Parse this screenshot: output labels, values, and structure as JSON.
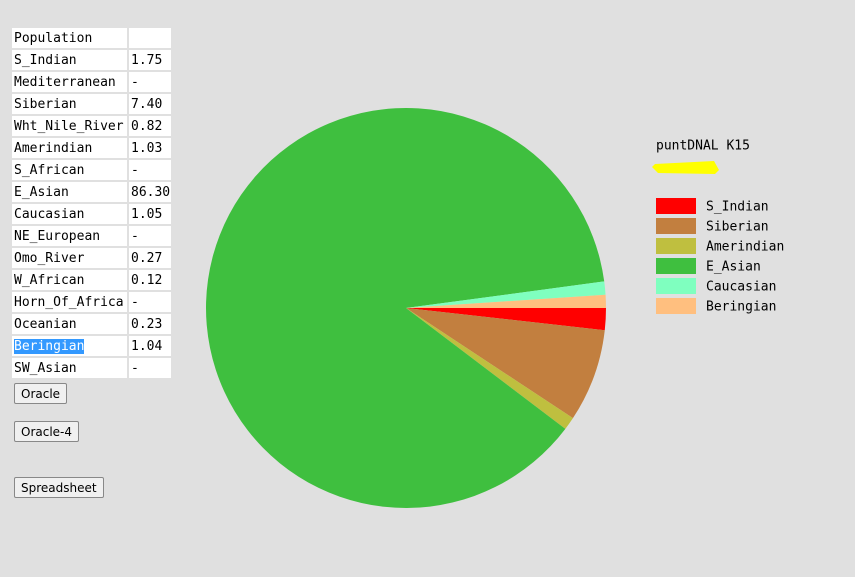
{
  "table": {
    "header": "Population",
    "rows": [
      [
        "S_Indian",
        "1.75"
      ],
      [
        "Mediterranean",
        "-"
      ],
      [
        "Siberian",
        "7.40"
      ],
      [
        "Wht_Nile_River",
        "0.82"
      ],
      [
        "Amerindian",
        "1.03"
      ],
      [
        "S_African",
        "-"
      ],
      [
        "E_Asian",
        "86.30"
      ],
      [
        "Caucasian",
        "1.05"
      ],
      [
        "NE_European",
        "-"
      ],
      [
        "Omo_River",
        "0.27"
      ],
      [
        "W_African",
        "0.12"
      ],
      [
        "Horn_Of_Africa",
        "-"
      ],
      [
        "Oceanian",
        "0.23"
      ],
      [
        "Beringian",
        "1.04"
      ],
      [
        "SW_Asian",
        "-"
      ]
    ]
  },
  "buttons": [
    "Oracle",
    "Oracle-4",
    "Spreadsheet"
  ],
  "chart_data": {
    "type": "pie",
    "title": "puntDNAL K15",
    "categories": [
      "S_Indian",
      "Siberian",
      "Amerindian",
      "E_Asian",
      "Caucasian",
      "Beringian"
    ],
    "values": [
      1.75,
      7.4,
      1.03,
      86.3,
      1.05,
      1.04
    ],
    "colors": [
      "#ff0000",
      "#c27f3f",
      "#bfbf3f",
      "#3fbf3f",
      "#7fffbf",
      "#ffbf7f"
    ]
  }
}
